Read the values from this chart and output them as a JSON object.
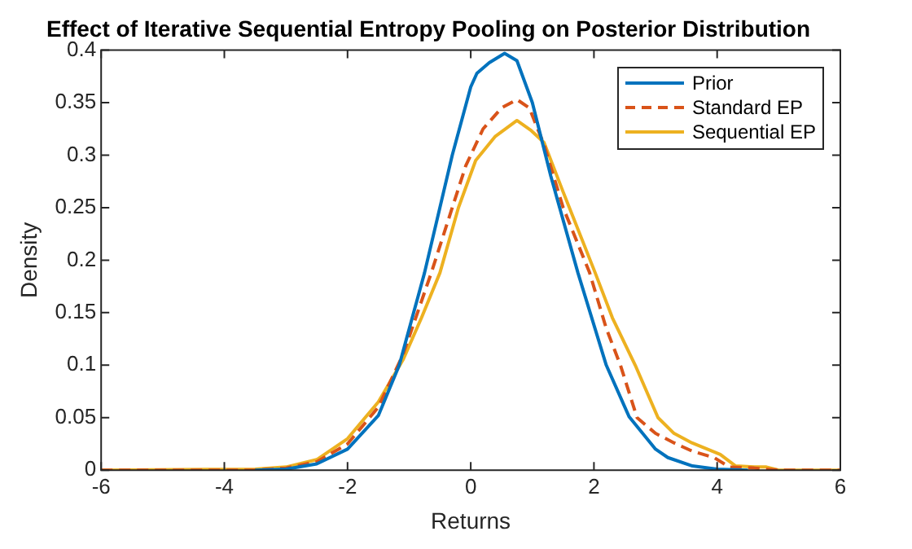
{
  "chart_data": {
    "type": "line",
    "title": "Effect of Iterative Sequential Entropy Pooling on Posterior Distribution",
    "xlabel": "Returns",
    "ylabel": "Density",
    "xlim": [
      -6,
      6
    ],
    "xticks": [
      -6,
      -4,
      -2,
      0,
      2,
      4,
      6
    ],
    "ylim": [
      0,
      0.4
    ],
    "yticks": [
      0,
      0.05,
      0.1,
      0.15,
      0.2,
      0.25,
      0.3,
      0.35,
      0.4
    ],
    "grid": false,
    "legend": "top right",
    "marker": "none",
    "series": [
      {
        "name": "Prior",
        "color": "#0072bd",
        "line_style": "solid",
        "x": [
          -3.5,
          -3,
          -2.5,
          -2,
          -1.5,
          -1.16,
          -0.75,
          -0.3,
          0,
          0.1,
          0.3,
          0.55,
          0.75,
          1,
          1.3,
          1.74,
          2.2,
          2.57,
          3,
          3.2,
          3.6,
          4,
          4.5
        ],
        "values": [
          0,
          0.001,
          0.006,
          0.02,
          0.052,
          0.1,
          0.188,
          0.3,
          0.365,
          0.378,
          0.388,
          0.397,
          0.39,
          0.35,
          0.28,
          0.188,
          0.1,
          0.051,
          0.02,
          0.012,
          0.004,
          0.001,
          0
        ]
      },
      {
        "name": "Standard EP",
        "color": "#d95319",
        "line_style": "dashed",
        "x": [
          -6,
          -3.5,
          -3,
          -2.5,
          -2,
          -1.5,
          -1.1,
          -0.64,
          -0.3,
          -0.08,
          0.2,
          0.5,
          0.75,
          0.95,
          1.19,
          1.5,
          1.93,
          2.2,
          2.43,
          2.7,
          3,
          3.3,
          3.6,
          3.95,
          4.2,
          4.6,
          5,
          6
        ],
        "values": [
          0,
          0,
          0.002,
          0.008,
          0.025,
          0.06,
          0.11,
          0.188,
          0.25,
          0.29,
          0.325,
          0.345,
          0.353,
          0.345,
          0.31,
          0.25,
          0.188,
          0.135,
          0.1,
          0.05,
          0.035,
          0.026,
          0.018,
          0.012,
          0.003,
          0.002,
          0,
          0
        ]
      },
      {
        "name": "Sequential EP",
        "color": "#edb120",
        "line_style": "solid",
        "x": [
          -6,
          -3.5,
          -3,
          -2.5,
          -2,
          -1.5,
          -1.1,
          -0.8,
          -0.5,
          -0.2,
          0.08,
          0.4,
          0.75,
          0.97,
          1.19,
          1.5,
          2.02,
          2.3,
          2.67,
          3.04,
          3.3,
          3.59,
          4.05,
          4.3,
          4.6,
          4.8,
          5,
          6
        ],
        "values": [
          0,
          0.001,
          0.003,
          0.01,
          0.03,
          0.065,
          0.105,
          0.145,
          0.188,
          0.25,
          0.295,
          0.318,
          0.333,
          0.324,
          0.312,
          0.265,
          0.188,
          0.145,
          0.1,
          0.05,
          0.035,
          0.026,
          0.015,
          0.004,
          0.003,
          0.003,
          0,
          0
        ]
      }
    ]
  }
}
